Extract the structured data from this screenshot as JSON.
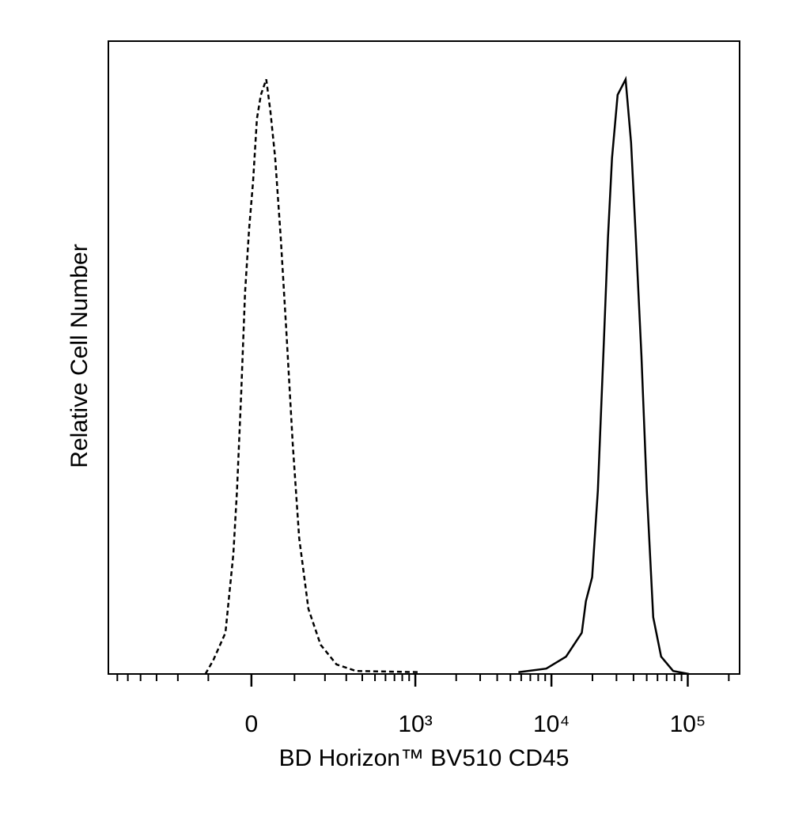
{
  "chart_data": {
    "type": "histogram-overlay",
    "x_label": "BD Horizon™  BV510 CD45",
    "y_label": "Relative Cell Number",
    "xscale": "biexponential",
    "xlim": [
      -700,
      240000
    ],
    "ylim": [
      0,
      106
    ],
    "xticks": [
      0,
      {
        "value": 1000,
        "label": "10³"
      },
      {
        "value": 10000,
        "label": "10⁴"
      },
      {
        "value": 100000,
        "label": "10⁵"
      }
    ],
    "xminorticks": [
      -600,
      -500,
      -400,
      -300,
      -200,
      -100,
      100,
      200,
      300,
      400,
      500,
      600,
      700,
      800,
      900,
      2000,
      3000,
      4000,
      5000,
      6000,
      7000,
      8000,
      9000,
      20000,
      30000,
      40000,
      50000,
      60000,
      70000,
      80000,
      90000,
      200000
    ],
    "series": [
      {
        "color": "#000000",
        "dash": "dashed",
        "x": [
          -108,
          -87,
          -57,
          -39,
          -31,
          -22,
          -13.5,
          -5,
          3.4,
          11.8,
          20.3,
          32,
          41,
          52,
          65,
          79,
          95,
          113,
          141,
          183,
          250,
          358,
          1072
        ],
        "values": [
          0,
          2.3,
          6.9,
          20.1,
          30.7,
          46.6,
          63.9,
          74.5,
          82.4,
          93.0,
          97.0,
          99.6,
          94.3,
          86.4,
          73.1,
          57.2,
          38.7,
          22.8,
          10.9,
          4.9,
          1.6,
          0.5,
          0.3
        ]
      },
      {
        "color": "#000000",
        "dash": "solid",
        "x": [
          5730,
          9160,
          12800,
          16700,
          17900,
          19900,
          21900,
          24000,
          26000,
          27800,
          30600,
          35000,
          38400,
          41600,
          45700,
          50100,
          55800,
          63800,
          78100,
          102000
        ],
        "values": [
          0.3,
          0.9,
          2.9,
          6.9,
          12.2,
          16.2,
          30.7,
          53.3,
          73.1,
          86.4,
          97.0,
          99.6,
          89.0,
          73.1,
          53.3,
          30.7,
          9.5,
          2.9,
          0.5,
          0
        ]
      }
    ]
  }
}
